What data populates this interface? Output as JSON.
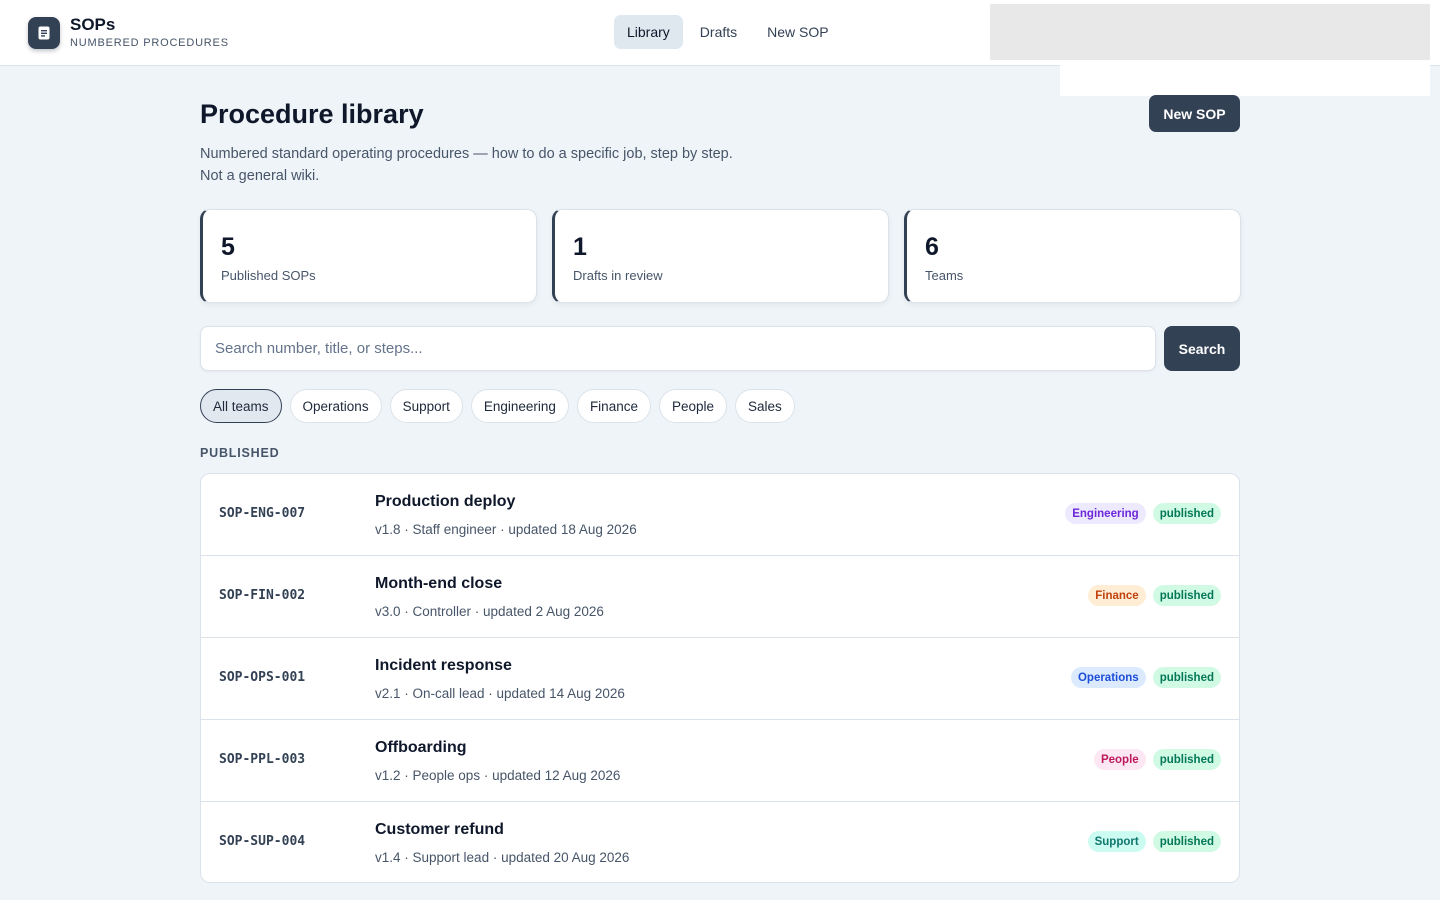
{
  "brand": {
    "name": "SOPs",
    "subtitle": "NUMBERED PROCEDURES",
    "icon": "document-icon"
  },
  "nav": [
    {
      "label": "Library",
      "active": true
    },
    {
      "label": "Drafts",
      "active": false
    },
    {
      "label": "New SOP",
      "active": false
    }
  ],
  "header": {
    "title": "Procedure library",
    "description": "Numbered standard operating procedures — how to do a specific job, step by step. Not a general wiki.",
    "new_button": "New SOP"
  },
  "stats": [
    {
      "value": "5",
      "label": "Published SOPs"
    },
    {
      "value": "1",
      "label": "Drafts in review"
    },
    {
      "value": "6",
      "label": "Teams"
    }
  ],
  "search": {
    "placeholder": "Search number, title, or steps...",
    "value": "",
    "button": "Search"
  },
  "filters": [
    {
      "label": "All teams",
      "active": true
    },
    {
      "label": "Operations",
      "active": false
    },
    {
      "label": "Support",
      "active": false
    },
    {
      "label": "Engineering",
      "active": false
    },
    {
      "label": "Finance",
      "active": false
    },
    {
      "label": "People",
      "active": false
    },
    {
      "label": "Sales",
      "active": false
    }
  ],
  "section_label": "PUBLISHED",
  "sops": [
    {
      "id": "SOP-ENG-007",
      "title": "Production deploy",
      "meta": "v1.8 · Staff engineer · updated 18 Aug 2026",
      "team": "Engineering",
      "status": "published"
    },
    {
      "id": "SOP-FIN-002",
      "title": "Month-end close",
      "meta": "v3.0 · Controller · updated 2 Aug 2026",
      "team": "Finance",
      "status": "published"
    },
    {
      "id": "SOP-OPS-001",
      "title": "Incident response",
      "meta": "v2.1 · On-call lead · updated 14 Aug 2026",
      "team": "Operations",
      "status": "published"
    },
    {
      "id": "SOP-PPL-003",
      "title": "Offboarding",
      "meta": "v1.2 · People ops · updated 12 Aug 2026",
      "team": "People",
      "status": "published"
    },
    {
      "id": "SOP-SUP-004",
      "title": "Customer refund",
      "meta": "v1.4 · Support lead · updated 20 Aug 2026",
      "team": "Support",
      "status": "published"
    }
  ],
  "team_colors": {
    "Engineering": {
      "bg": "#ede9fe",
      "fg": "#6d28d9"
    },
    "Finance": {
      "bg": "#ffedd5",
      "fg": "#c2410c"
    },
    "Operations": {
      "bg": "#dbeafe",
      "fg": "#1d4ed8"
    },
    "People": {
      "bg": "#fce7f3",
      "fg": "#be185d"
    },
    "Support": {
      "bg": "#ccfbf1",
      "fg": "#0f766e"
    }
  },
  "colors": {
    "accent": "#334155",
    "background": "#eff4f8",
    "published_bg": "#d1fae5",
    "published_fg": "#047857"
  }
}
